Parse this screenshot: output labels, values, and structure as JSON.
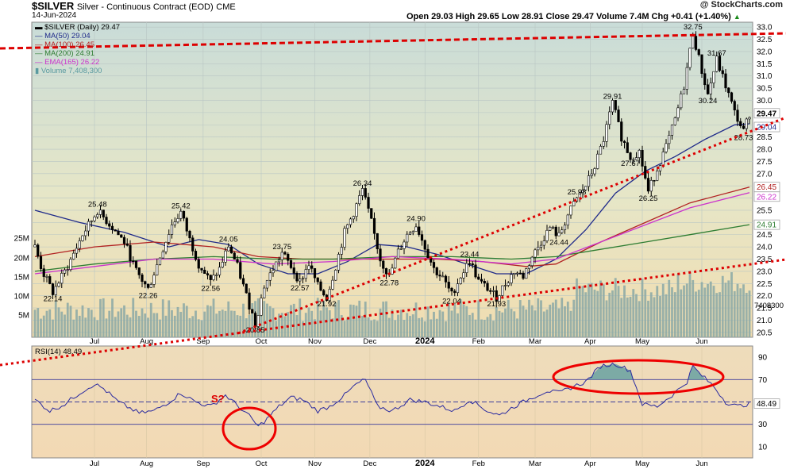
{
  "header": {
    "symbol": "$SILVER",
    "description": "Silver - Continuous Contract (EOD)",
    "exchange": "CME",
    "date": "14-Jun-2024",
    "brand": "@ StockCharts.com",
    "ohlc": "Open 29.03  High 29.65  Low 28.91  Close 29.47  Volume 7.4M  Chg +0.41 (+1.40%)",
    "ohlc_arrow": "▲"
  },
  "legend": [
    {
      "text": "$SILVER (Daily) 29.47",
      "color": "#000000",
      "marker": "▬"
    },
    {
      "text": "MA(50) 29.04",
      "color": "#1f2a8a",
      "marker": "—"
    },
    {
      "text": "MA(100) 26.45",
      "color": "#b22222",
      "marker": "—"
    },
    {
      "text": "MA(200) 24.91",
      "color": "#2e7d32",
      "marker": "—"
    },
    {
      "text": "EMA(165) 26.22",
      "color": "#cc33cc",
      "marker": "—"
    },
    {
      "text": "Volume 7,408,300",
      "color": "#5a9aa0",
      "marker": "▮"
    }
  ],
  "rsi_label": "RSI(14) 48.49",
  "chart_data": [
    {
      "type": "candlestick",
      "title": "$SILVER (Daily)",
      "x_months": [
        "Jul",
        "Aug",
        "Sep",
        "Oct",
        "Nov",
        "Dec",
        "2024",
        "Feb",
        "Mar",
        "Apr",
        "May",
        "Jun"
      ],
      "y_ticks": [
        20.5,
        21.0,
        21.5,
        22.0,
        22.5,
        23.0,
        23.5,
        24.0,
        24.5,
        25.0,
        25.5,
        26.0,
        26.5,
        27.0,
        27.5,
        28.0,
        28.5,
        29.0,
        29.5,
        30.0,
        30.5,
        31.0,
        31.5,
        32.0,
        32.5,
        33.0
      ],
      "ylim": [
        20.3,
        33.2
      ],
      "volume_ticks": [
        "5M",
        "10M",
        "15M",
        "20M",
        "25M"
      ],
      "price_path": [
        [
          0,
          24.0
        ],
        [
          5,
          23.0
        ],
        [
          12,
          22.14
        ],
        [
          22,
          23.2
        ],
        [
          32,
          24.5
        ],
        [
          42,
          25.48
        ],
        [
          52,
          24.8
        ],
        [
          60,
          24.2
        ],
        [
          68,
          23.0
        ],
        [
          76,
          22.26
        ],
        [
          84,
          23.6
        ],
        [
          92,
          24.9
        ],
        [
          98,
          25.42
        ],
        [
          104,
          24.3
        ],
        [
          110,
          23.3
        ],
        [
          118,
          22.56
        ],
        [
          124,
          23.1
        ],
        [
          130,
          24.05
        ],
        [
          136,
          23.2
        ],
        [
          142,
          22.0
        ],
        [
          148,
          20.85
        ],
        [
          154,
          22.4
        ],
        [
          160,
          23.1
        ],
        [
          166,
          23.75
        ],
        [
          172,
          23.2
        ],
        [
          178,
          22.57
        ],
        [
          184,
          23.3
        ],
        [
          190,
          22.4
        ],
        [
          196,
          21.92
        ],
        [
          202,
          23.2
        ],
        [
          208,
          24.6
        ],
        [
          214,
          25.4
        ],
        [
          220,
          26.34
        ],
        [
          226,
          25.0
        ],
        [
          232,
          23.5
        ],
        [
          238,
          22.78
        ],
        [
          244,
          23.8
        ],
        [
          250,
          24.5
        ],
        [
          256,
          24.9
        ],
        [
          262,
          24.0
        ],
        [
          268,
          23.1
        ],
        [
          274,
          22.7
        ],
        [
          280,
          22.04
        ],
        [
          286,
          22.8
        ],
        [
          292,
          23.44
        ],
        [
          298,
          22.6
        ],
        [
          304,
          22.3
        ],
        [
          310,
          21.93
        ],
        [
          316,
          22.5
        ],
        [
          322,
          23.0
        ],
        [
          328,
          22.8
        ],
        [
          334,
          23.6
        ],
        [
          340,
          24.2
        ],
        [
          346,
          24.8
        ],
        [
          352,
          24.44
        ],
        [
          358,
          25.3
        ],
        [
          364,
          25.98
        ],
        [
          370,
          26.5
        ],
        [
          376,
          27.3
        ],
        [
          382,
          28.4
        ],
        [
          388,
          29.91
        ],
        [
          394,
          28.5
        ],
        [
          400,
          27.67
        ],
        [
          406,
          27.9
        ],
        [
          412,
          26.25
        ],
        [
          418,
          27.2
        ],
        [
          424,
          28.1
        ],
        [
          430,
          29.2
        ],
        [
          436,
          30.6
        ],
        [
          442,
          32.75
        ],
        [
          448,
          31.2
        ],
        [
          452,
          30.24
        ],
        [
          458,
          31.67
        ],
        [
          464,
          30.6
        ],
        [
          470,
          29.5
        ],
        [
          476,
          28.73
        ],
        [
          480,
          29.47
        ]
      ],
      "annotations": [
        {
          "x": 12,
          "y": 22.14,
          "label": "22.14",
          "pos": "below"
        },
        {
          "x": 42,
          "y": 25.48,
          "label": "25.48",
          "pos": "above"
        },
        {
          "x": 76,
          "y": 22.26,
          "label": "22.26",
          "pos": "below"
        },
        {
          "x": 98,
          "y": 25.42,
          "label": "25.42",
          "pos": "above"
        },
        {
          "x": 118,
          "y": 22.56,
          "label": "22.56",
          "pos": "below"
        },
        {
          "x": 130,
          "y": 24.05,
          "label": "24.05",
          "pos": "above"
        },
        {
          "x": 148,
          "y": 20.85,
          "label": "20.85",
          "pos": "below"
        },
        {
          "x": 166,
          "y": 23.75,
          "label": "23.75",
          "pos": "above"
        },
        {
          "x": 178,
          "y": 22.57,
          "label": "22.57",
          "pos": "below"
        },
        {
          "x": 196,
          "y": 21.92,
          "label": "21.92",
          "pos": "below"
        },
        {
          "x": 220,
          "y": 26.34,
          "label": "26.34",
          "pos": "above"
        },
        {
          "x": 238,
          "y": 22.78,
          "label": "22.78",
          "pos": "below"
        },
        {
          "x": 256,
          "y": 24.9,
          "label": "24.90",
          "pos": "above"
        },
        {
          "x": 280,
          "y": 22.04,
          "label": "22.04",
          "pos": "below"
        },
        {
          "x": 292,
          "y": 23.44,
          "label": "23.44",
          "pos": "above"
        },
        {
          "x": 310,
          "y": 21.93,
          "label": "21.93",
          "pos": "below"
        },
        {
          "x": 352,
          "y": 24.44,
          "label": "24.44",
          "pos": "below"
        },
        {
          "x": 364,
          "y": 25.98,
          "label": "25.98",
          "pos": "above"
        },
        {
          "x": 388,
          "y": 29.91,
          "label": "29.91",
          "pos": "above"
        },
        {
          "x": 400,
          "y": 27.67,
          "label": "27.67",
          "pos": "below"
        },
        {
          "x": 412,
          "y": 26.25,
          "label": "26.25",
          "pos": "below"
        },
        {
          "x": 442,
          "y": 32.75,
          "label": "32.75",
          "pos": "above"
        },
        {
          "x": 452,
          "y": 30.24,
          "label": "30.24",
          "pos": "below"
        },
        {
          "x": 458,
          "y": 31.67,
          "label": "31.67",
          "pos": "above"
        },
        {
          "x": 476,
          "y": 28.73,
          "label": "28.73",
          "pos": "below"
        }
      ],
      "moving_averages": [
        {
          "name": "MA(50)",
          "color": "#1f2a8a",
          "points": [
            [
              0,
              25.5
            ],
            [
              30,
              25.0
            ],
            [
              60,
              24.6
            ],
            [
              90,
              24.0
            ],
            [
              110,
              24.3
            ],
            [
              130,
              24.1
            ],
            [
              150,
              23.3
            ],
            [
              170,
              22.9
            ],
            [
              190,
              22.9
            ],
            [
              210,
              23.4
            ],
            [
              230,
              24.1
            ],
            [
              250,
              24.0
            ],
            [
              270,
              23.7
            ],
            [
              290,
              23.3
            ],
            [
              310,
              22.9
            ],
            [
              330,
              22.9
            ],
            [
              350,
              23.5
            ],
            [
              370,
              24.7
            ],
            [
              390,
              26.2
            ],
            [
              410,
              27.1
            ],
            [
              430,
              27.7
            ],
            [
              450,
              28.4
            ],
            [
              470,
              29.0
            ],
            [
              480,
              29.04
            ]
          ]
        },
        {
          "name": "MA(100)",
          "color": "#b22222",
          "points": [
            [
              0,
              23.6
            ],
            [
              40,
              24.0
            ],
            [
              80,
              24.2
            ],
            [
              120,
              24.0
            ],
            [
              150,
              23.6
            ],
            [
              180,
              23.5
            ],
            [
              210,
              23.5
            ],
            [
              240,
              23.5
            ],
            [
              270,
              23.5
            ],
            [
              300,
              23.4
            ],
            [
              330,
              23.2
            ],
            [
              350,
              23.3
            ],
            [
              380,
              24.2
            ],
            [
              410,
              25.0
            ],
            [
              440,
              25.8
            ],
            [
              480,
              26.45
            ]
          ]
        },
        {
          "name": "MA(200)",
          "color": "#2e7d32",
          "points": [
            [
              0,
              23.0
            ],
            [
              40,
              23.3
            ],
            [
              80,
              23.5
            ],
            [
              120,
              23.6
            ],
            [
              160,
              23.5
            ],
            [
              200,
              23.5
            ],
            [
              240,
              23.6
            ],
            [
              280,
              23.6
            ],
            [
              320,
              23.5
            ],
            [
              350,
              23.6
            ],
            [
              380,
              23.9
            ],
            [
              410,
              24.2
            ],
            [
              440,
              24.5
            ],
            [
              480,
              24.91
            ]
          ]
        },
        {
          "name": "EMA(165)",
          "color": "#cc33cc",
          "points": [
            [
              0,
              22.9
            ],
            [
              40,
              23.2
            ],
            [
              80,
              23.5
            ],
            [
              120,
              23.5
            ],
            [
              160,
              23.3
            ],
            [
              200,
              23.4
            ],
            [
              240,
              23.6
            ],
            [
              280,
              23.5
            ],
            [
              320,
              23.3
            ],
            [
              350,
              23.5
            ],
            [
              380,
              24.2
            ],
            [
              410,
              24.9
            ],
            [
              440,
              25.6
            ],
            [
              480,
              26.22
            ]
          ]
        }
      ],
      "price_tags": [
        {
          "value": 29.47,
          "label": "29.47",
          "bg": "#ffffff",
          "fg": "#000000",
          "bold": true
        },
        {
          "value": 29.04,
          "label": "29.04",
          "bg": "#ffffff",
          "fg": "#1f2a8a",
          "bold": false
        },
        {
          "value": 26.45,
          "label": "26.45",
          "bg": "#ffffff",
          "fg": "#b22222",
          "bold": false
        },
        {
          "value": 26.22,
          "label": "26.22",
          "bg": "#ffffff",
          "fg": "#cc33cc",
          "bold": false
        },
        {
          "value": 24.91,
          "label": "24.91",
          "bg": "#ffffff",
          "fg": "#2e7d32",
          "bold": false
        }
      ],
      "volume_last_label": "7408300"
    },
    {
      "type": "line",
      "title": "RSI(14)",
      "y_ticks": [
        10,
        30,
        50,
        70,
        90
      ],
      "ylim": [
        0,
        100
      ],
      "levels": [
        30,
        50,
        70
      ],
      "last_value": 48.49,
      "rsi_path": [
        [
          0,
          52
        ],
        [
          10,
          42
        ],
        [
          20,
          48
        ],
        [
          30,
          58
        ],
        [
          40,
          66
        ],
        [
          46,
          62
        ],
        [
          56,
          50
        ],
        [
          70,
          40
        ],
        [
          80,
          42
        ],
        [
          90,
          50
        ],
        [
          98,
          58
        ],
        [
          108,
          50
        ],
        [
          118,
          46
        ],
        [
          128,
          56
        ],
        [
          135,
          48
        ],
        [
          145,
          36
        ],
        [
          150,
          28
        ],
        [
          156,
          35
        ],
        [
          164,
          46
        ],
        [
          172,
          54
        ],
        [
          180,
          52
        ],
        [
          190,
          42
        ],
        [
          198,
          46
        ],
        [
          208,
          56
        ],
        [
          216,
          66
        ],
        [
          222,
          70
        ],
        [
          230,
          46
        ],
        [
          240,
          42
        ],
        [
          252,
          52
        ],
        [
          262,
          50
        ],
        [
          272,
          46
        ],
        [
          282,
          42
        ],
        [
          292,
          52
        ],
        [
          304,
          42
        ],
        [
          312,
          38
        ],
        [
          322,
          46
        ],
        [
          334,
          54
        ],
        [
          344,
          60
        ],
        [
          352,
          58
        ],
        [
          362,
          64
        ],
        [
          370,
          68
        ],
        [
          380,
          82
        ],
        [
          390,
          84
        ],
        [
          400,
          78
        ],
        [
          408,
          48
        ],
        [
          418,
          46
        ],
        [
          428,
          56
        ],
        [
          438,
          68
        ],
        [
          442,
          82
        ],
        [
          446,
          76
        ],
        [
          456,
          64
        ],
        [
          464,
          50
        ],
        [
          472,
          46
        ],
        [
          480,
          48.49
        ]
      ]
    }
  ],
  "overlay_labels": {
    "s_question": "S?"
  }
}
